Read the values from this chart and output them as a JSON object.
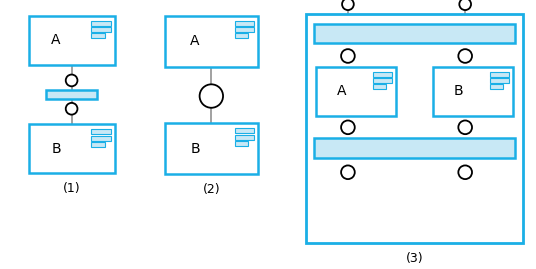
{
  "bg_color": "#ffffff",
  "blue_border": "#1AAFE6",
  "blue_fill": "#C8E8F5",
  "line_color": "#888888",
  "fig_width": 5.36,
  "fig_height": 2.69,
  "title1": "(1)",
  "title2": "(2)",
  "title3": "(3)"
}
